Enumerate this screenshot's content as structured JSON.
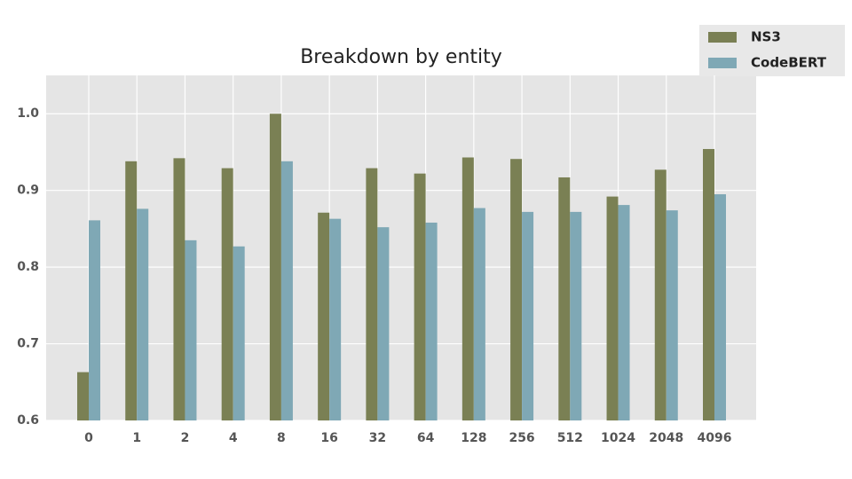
{
  "chart_data": {
    "type": "bar",
    "title": "Breakdown by entity",
    "categories": [
      "0",
      "1",
      "2",
      "4",
      "8",
      "16",
      "32",
      "64",
      "128",
      "256",
      "512",
      "1024",
      "2048",
      "4096"
    ],
    "series": [
      {
        "name": "NS3",
        "color": "#7a8054",
        "values": [
          0.663,
          0.938,
          0.942,
          0.929,
          1.0,
          0.871,
          0.929,
          0.922,
          0.943,
          0.941,
          0.917,
          0.892,
          0.927,
          0.954
        ]
      },
      {
        "name": "CodeBERT",
        "color": "#7fa8b5",
        "values": [
          0.861,
          0.876,
          0.835,
          0.827,
          0.938,
          0.863,
          0.852,
          0.858,
          0.877,
          0.872,
          0.872,
          0.881,
          0.874,
          0.895
        ]
      }
    ],
    "ylim": [
      0.6,
      1.05
    ],
    "yticks": [
      0.6,
      0.7,
      0.8,
      0.9,
      {
        "value": 1,
        "label": "1.0"
      }
    ],
    "grid": true,
    "legend": "upper right"
  }
}
